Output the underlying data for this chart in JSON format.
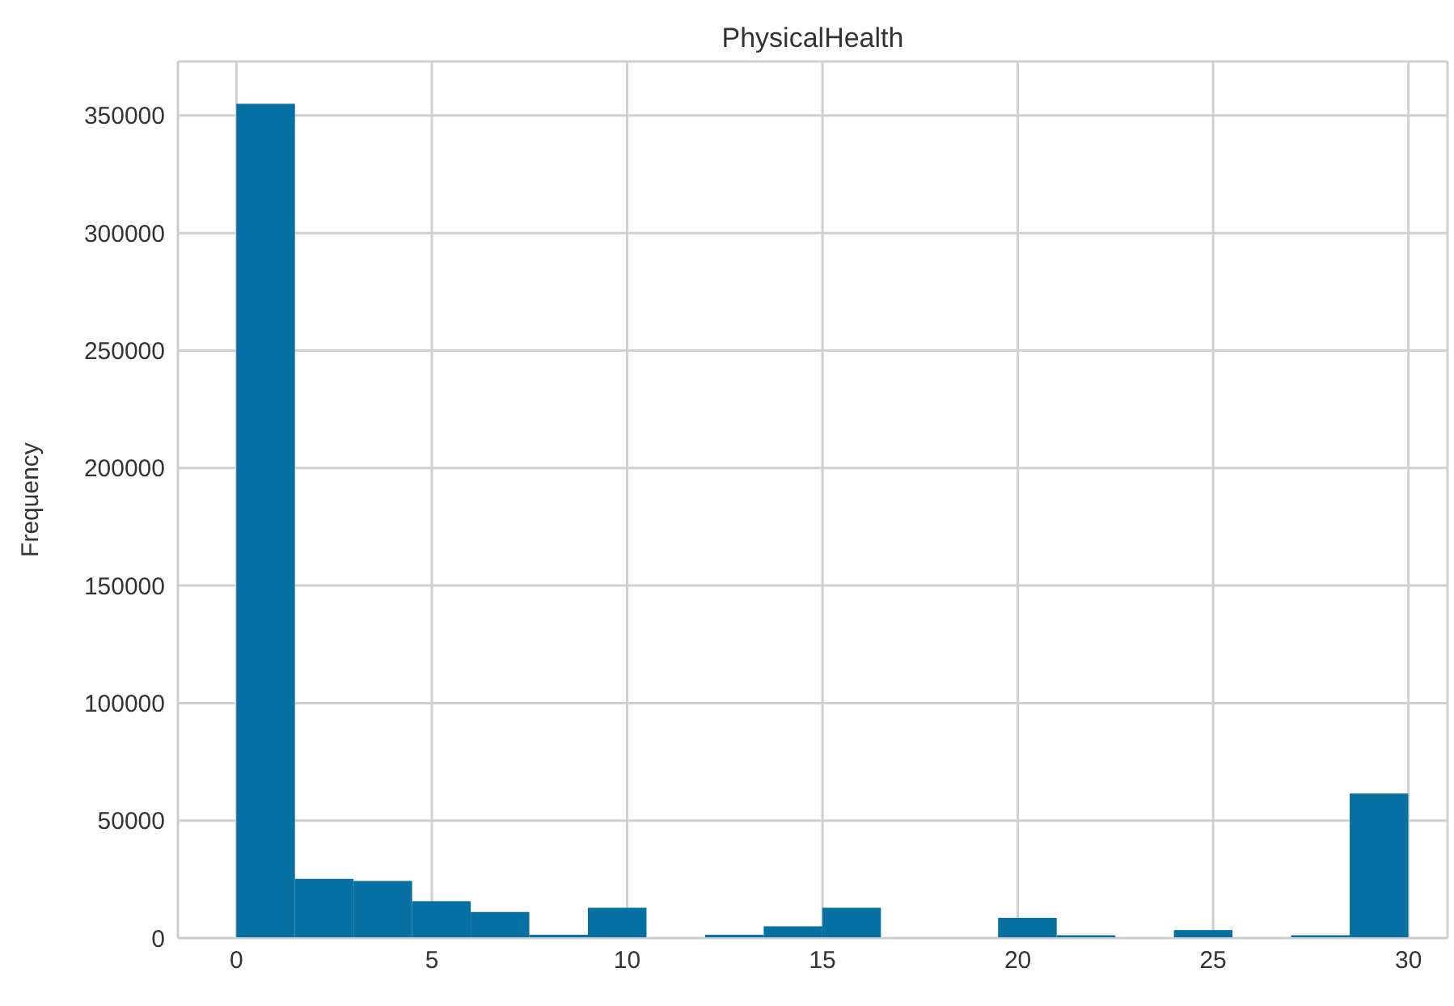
{
  "chart_data": {
    "type": "histogram",
    "title": "PhysicalHealth",
    "ylabel": "Frequency",
    "color": "#0570a1",
    "bins": [
      0,
      1.5,
      3,
      4.5,
      6,
      7.5,
      9,
      10.5,
      12,
      13.5,
      15,
      16.5,
      18,
      19.5,
      21,
      22.5,
      24,
      25.5,
      27,
      28.5,
      30
    ],
    "values": [
      355000,
      25200,
      24300,
      15700,
      11100,
      1400,
      12900,
      0,
      1400,
      5000,
      12900,
      0,
      0,
      8600,
      1200,
      0,
      3400,
      0,
      1200,
      61500
    ],
    "xlim": [
      -1.5,
      31
    ],
    "ylim": [
      0,
      373000
    ],
    "xticks": [
      0,
      5,
      10,
      15,
      20,
      25,
      30
    ],
    "yticks": [
      0,
      50000,
      100000,
      150000,
      200000,
      250000,
      300000,
      350000
    ],
    "grid": true
  }
}
